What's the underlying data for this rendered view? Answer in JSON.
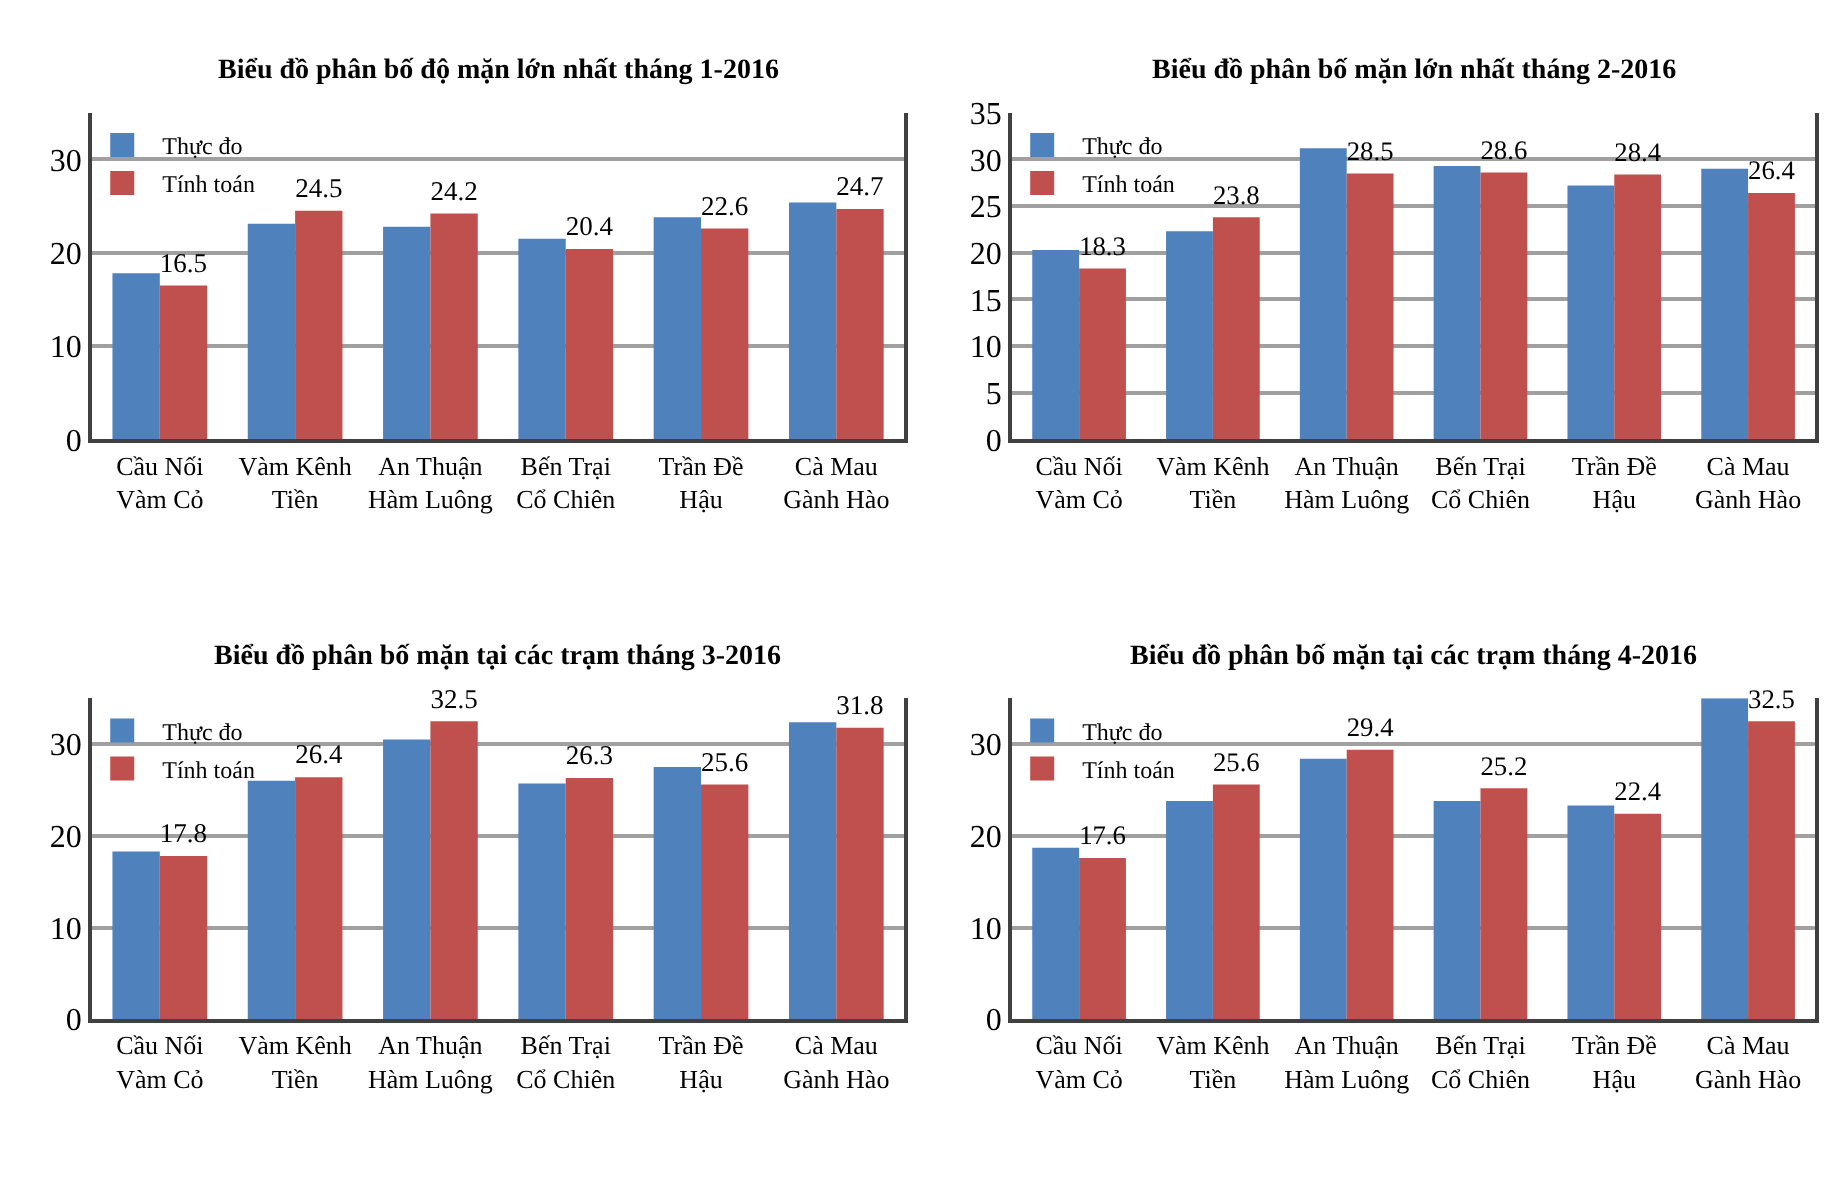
{
  "chart_data": [
    {
      "type": "bar",
      "title": "Biểu đồ phân bố độ mặn lớn nhất tháng 1-2016",
      "categories": [
        "Cầu Nối Vàm Cỏ",
        "Vàm Kênh Tiền",
        "An Thuận Hàm Luông",
        "Bến Trại Cổ Chiên",
        "Trần Đề Hậu",
        "Cà Mau Gành Hào"
      ],
      "series": [
        {
          "name": "Thực đo",
          "color": "#4f81bd",
          "values": [
            17.8,
            23.1,
            22.8,
            21.5,
            23.8,
            25.4
          ]
        },
        {
          "name": "Tính toán",
          "color": "#c0504d",
          "values": [
            16.5,
            24.5,
            24.2,
            20.4,
            22.6,
            24.7
          ],
          "value_labels": [
            "16.5",
            "24.5",
            "24.2",
            "20.4",
            "22.6",
            "24.7"
          ]
        }
      ],
      "ylim": [
        0,
        35
      ],
      "yticks": [
        0,
        10,
        20,
        30
      ],
      "grid": "y",
      "legend": "top left"
    },
    {
      "type": "bar",
      "title": "Biểu đồ phân bố mặn lớn nhất tháng 2-2016",
      "categories": [
        "Cầu Nối Vàm Cỏ",
        "Vàm Kênh Tiền",
        "An Thuận Hàm Luông",
        "Bến Trại Cổ Chiên",
        "Trần Đề Hậu",
        "Cà Mau Gành Hào"
      ],
      "series": [
        {
          "name": "Thực đo",
          "color": "#4f81bd",
          "values": [
            20.3,
            22.3,
            31.2,
            29.3,
            27.2,
            29.0
          ]
        },
        {
          "name": "Tính toán",
          "color": "#c0504d",
          "values": [
            18.3,
            23.8,
            28.5,
            28.6,
            28.4,
            26.4
          ],
          "value_labels": [
            "18.3",
            "23.8",
            "28.5",
            "28.6",
            "28.4",
            "26.4"
          ]
        }
      ],
      "ylim": [
        0,
        35
      ],
      "yticks": [
        0,
        5,
        10,
        15,
        20,
        25,
        30,
        35
      ],
      "grid": "y",
      "legend": "top left"
    },
    {
      "type": "bar",
      "title": "Biểu đồ phân bố mặn tại các trạm tháng 3-2016",
      "categories": [
        "Cầu Nối Vàm Cỏ",
        "Vàm Kênh Tiền",
        "An Thuận Hàm Luông",
        "Bến Trại Cổ Chiên",
        "Trần Đề Hậu",
        "Cà Mau Gành Hào"
      ],
      "series": [
        {
          "name": "Thực đo",
          "color": "#4f81bd",
          "values": [
            18.3,
            26.0,
            30.5,
            25.7,
            27.5,
            32.4
          ]
        },
        {
          "name": "Tính toán",
          "color": "#c0504d",
          "values": [
            17.8,
            26.4,
            32.5,
            26.3,
            25.6,
            31.8
          ],
          "value_labels": [
            "17.8",
            "26.4",
            "32.5",
            "26.3",
            "25.6",
            "31.8"
          ]
        }
      ],
      "ylim": [
        0,
        35
      ],
      "yticks": [
        0,
        10,
        20,
        30
      ],
      "grid": "y",
      "legend": "top left"
    },
    {
      "type": "bar",
      "title": "Biểu đồ phân bố mặn tại các trạm tháng 4-2016",
      "categories": [
        "Cầu Nối Vàm Cỏ",
        "Vàm Kênh Tiền",
        "An Thuận Hàm Luông",
        "Bến Trại Cổ Chiên",
        "Trần Đề Hậu",
        "Cà Mau Gành Hào"
      ],
      "series": [
        {
          "name": "Thực đo",
          "color": "#4f81bd",
          "values": [
            18.7,
            23.8,
            28.4,
            23.8,
            23.3,
            35
          ]
        },
        {
          "name": "Tính toán",
          "color": "#c0504d",
          "values": [
            17.6,
            25.6,
            29.4,
            25.2,
            22.4,
            32.5
          ],
          "value_labels": [
            "17.6",
            "25.6",
            "29.4",
            "25.2",
            "22.4",
            "32.5"
          ]
        }
      ],
      "ylim": [
        0,
        35
      ],
      "yticks": [
        0,
        10,
        20,
        30
      ],
      "grid": "y",
      "legend": "top left"
    }
  ]
}
